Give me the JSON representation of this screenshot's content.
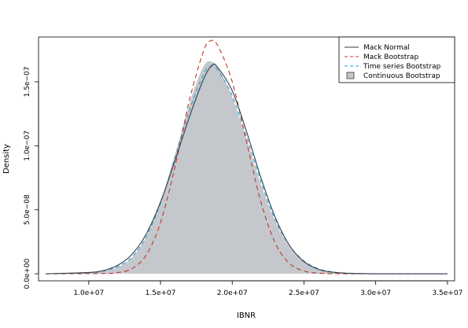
{
  "chart_data": {
    "type": "area",
    "title": "",
    "xlabel": "IBNR",
    "ylabel": "Density",
    "xlim": [
      6500000,
      35500000
    ],
    "ylim": [
      -5.5e-09,
      1.85e-07
    ],
    "x_ticks": [
      10000000,
      15000000,
      20000000,
      25000000,
      30000000,
      35000000
    ],
    "x_tick_labels": [
      "1.0e+07",
      "1.5e+07",
      "2.0e+07",
      "2.5e+07",
      "3.0e+07",
      "3.5e+07"
    ],
    "y_ticks": [
      0,
      5e-08,
      1e-07,
      1.5e-07
    ],
    "y_tick_labels": [
      "0.0e+00",
      "5.0e−08",
      "1.0e−07",
      "1.5e−07"
    ],
    "grid": false,
    "legend_position": "top-right",
    "series": [
      {
        "name": "Mack Normal",
        "style": "solid",
        "color": "#2f3e4e",
        "x": [
          7000000,
          10000000,
          11000000,
          12000000,
          13000000,
          14000000,
          15000000,
          16000000,
          17000000,
          18000000,
          18600000,
          19000000,
          20000000,
          21000000,
          22000000,
          23000000,
          24000000,
          25000000,
          26000000,
          27000000,
          28000000,
          30000000,
          35000000
        ],
        "values": [
          0,
          1e-09,
          2.5e-09,
          6.5e-09,
          1.5e-08,
          3.1e-08,
          5.6e-08,
          8.8e-08,
          1.22e-07,
          1.52e-07,
          1.63e-07,
          1.61e-07,
          1.43e-07,
          1.11e-07,
          7.5e-08,
          4.4e-08,
          2.2e-08,
          9.5e-09,
          3.5e-09,
          1.2e-09,
          4e-10,
          0,
          0
        ]
      },
      {
        "name": "Mack Bootstrap",
        "style": "dashed",
        "color": "#c0392b",
        "x": [
          7000000,
          11000000,
          12000000,
          13000000,
          14000000,
          15000000,
          16000000,
          17000000,
          18000000,
          18500000,
          19000000,
          20000000,
          21000000,
          22000000,
          23000000,
          24000000,
          25000000,
          26000000,
          28000000,
          35000000
        ],
        "values": [
          0,
          2e-10,
          9e-10,
          4e-09,
          1.45e-08,
          4e-08,
          8.3e-08,
          1.35e-07,
          1.74e-07,
          1.82e-07,
          1.78e-07,
          1.5e-07,
          1.03e-07,
          5.6e-08,
          2.4e-08,
          8e-09,
          2.2e-09,
          5e-10,
          0,
          0
        ]
      },
      {
        "name": "Time series Bootstrap",
        "style": "dashed",
        "color": "#3a9bc8",
        "x": [
          7000000,
          10000000,
          11000000,
          12000000,
          13000000,
          14000000,
          15000000,
          16000000,
          17000000,
          18000000,
          18500000,
          19000000,
          20000000,
          21000000,
          22000000,
          23000000,
          24000000,
          25000000,
          26000000,
          27000000,
          28000000,
          30000000,
          35000000
        ],
        "values": [
          0,
          8e-10,
          2e-09,
          5.5e-09,
          1.3e-08,
          2.9e-08,
          5.5e-08,
          9e-08,
          1.27e-07,
          1.56e-07,
          1.62e-07,
          1.59e-07,
          1.39e-07,
          1.07e-07,
          7.2e-08,
          4.2e-08,
          2.2e-08,
          1e-08,
          4e-09,
          1.5e-09,
          5e-10,
          0,
          0
        ]
      },
      {
        "name": "Continuous Bootstrap",
        "style": "filled",
        "color": "#c4c8cc",
        "x": [
          7000000,
          10000000,
          11000000,
          12000000,
          13000000,
          14000000,
          15000000,
          16000000,
          17000000,
          17500000,
          18000000,
          18400000,
          19000000,
          20000000,
          21000000,
          22000000,
          23000000,
          24000000,
          25000000,
          26000000,
          27000000,
          28000000,
          30000000,
          35000000
        ],
        "values": [
          0,
          8e-10,
          2e-09,
          5e-09,
          1.25e-08,
          2.9e-08,
          5.6e-08,
          9.3e-08,
          1.32e-07,
          1.49e-07,
          1.62e-07,
          1.66e-07,
          1.61e-07,
          1.38e-07,
          1.05e-07,
          7e-08,
          4.1e-08,
          2.1e-08,
          9.5e-09,
          3.8e-09,
          1.4e-09,
          5e-10,
          0,
          0
        ]
      }
    ]
  }
}
